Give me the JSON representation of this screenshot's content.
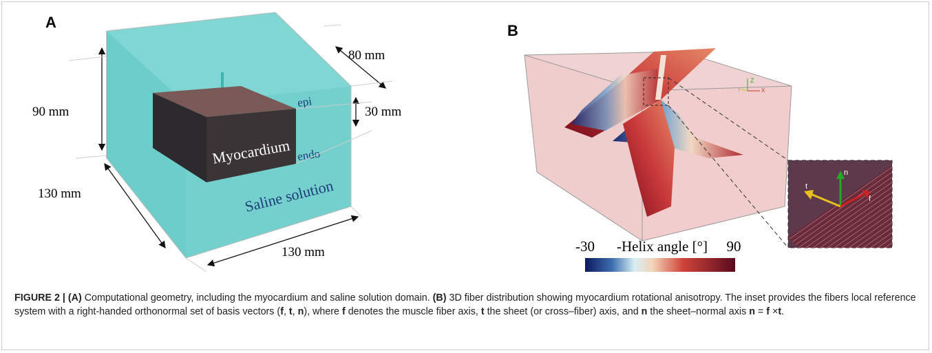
{
  "panel_a": {
    "label": "A",
    "dim_depth": "80 mm",
    "dim_height": "90 mm",
    "dim_tissue": "30 mm",
    "dim_left": "130 mm",
    "dim_front": "130 mm",
    "epi": "epi",
    "endo": "endo",
    "tissue": "Myocardium",
    "bath": "Saline solution"
  },
  "panel_b": {
    "label": "B",
    "axes": [
      "Y",
      "Z",
      "X"
    ],
    "colorbar": {
      "min": "-30",
      "title": "-Helix angle [°]",
      "max": "90"
    },
    "inset": {
      "t": "t",
      "n": "n",
      "f": "f"
    }
  },
  "caption": [
    {
      "text": "FIGURE 2 | (A)",
      "bold": true
    },
    {
      "text": " Computational geometry, including the myocardium and saline solution domain. ",
      "bold": false
    },
    {
      "text": "(B)",
      "bold": true
    },
    {
      "text": " 3D fiber distribution showing myocardium rotational anisotropy. The inset provides the fibers local reference system with a right-handed orthonormal set of basis vectors (",
      "bold": false
    },
    {
      "text": "f",
      "bold": true
    },
    {
      "text": ", ",
      "bold": false
    },
    {
      "text": "t",
      "bold": true
    },
    {
      "text": ", ",
      "bold": false
    },
    {
      "text": "n",
      "bold": true
    },
    {
      "text": "), where ",
      "bold": false
    },
    {
      "text": "f",
      "bold": true
    },
    {
      "text": " denotes the muscle fiber axis, ",
      "bold": false
    },
    {
      "text": "t",
      "bold": true
    },
    {
      "text": " the sheet (or cross–fiber) axis, and ",
      "bold": false
    },
    {
      "text": "n",
      "bold": true
    },
    {
      "text": " the sheet–normal axis ",
      "bold": false
    },
    {
      "text": "n",
      "bold": true
    },
    {
      "text": " = ",
      "bold": false
    },
    {
      "text": "f",
      "bold": true
    },
    {
      "text": " ×",
      "bold": false
    },
    {
      "text": "t",
      "bold": true
    },
    {
      "text": ".",
      "bold": false
    }
  ]
}
